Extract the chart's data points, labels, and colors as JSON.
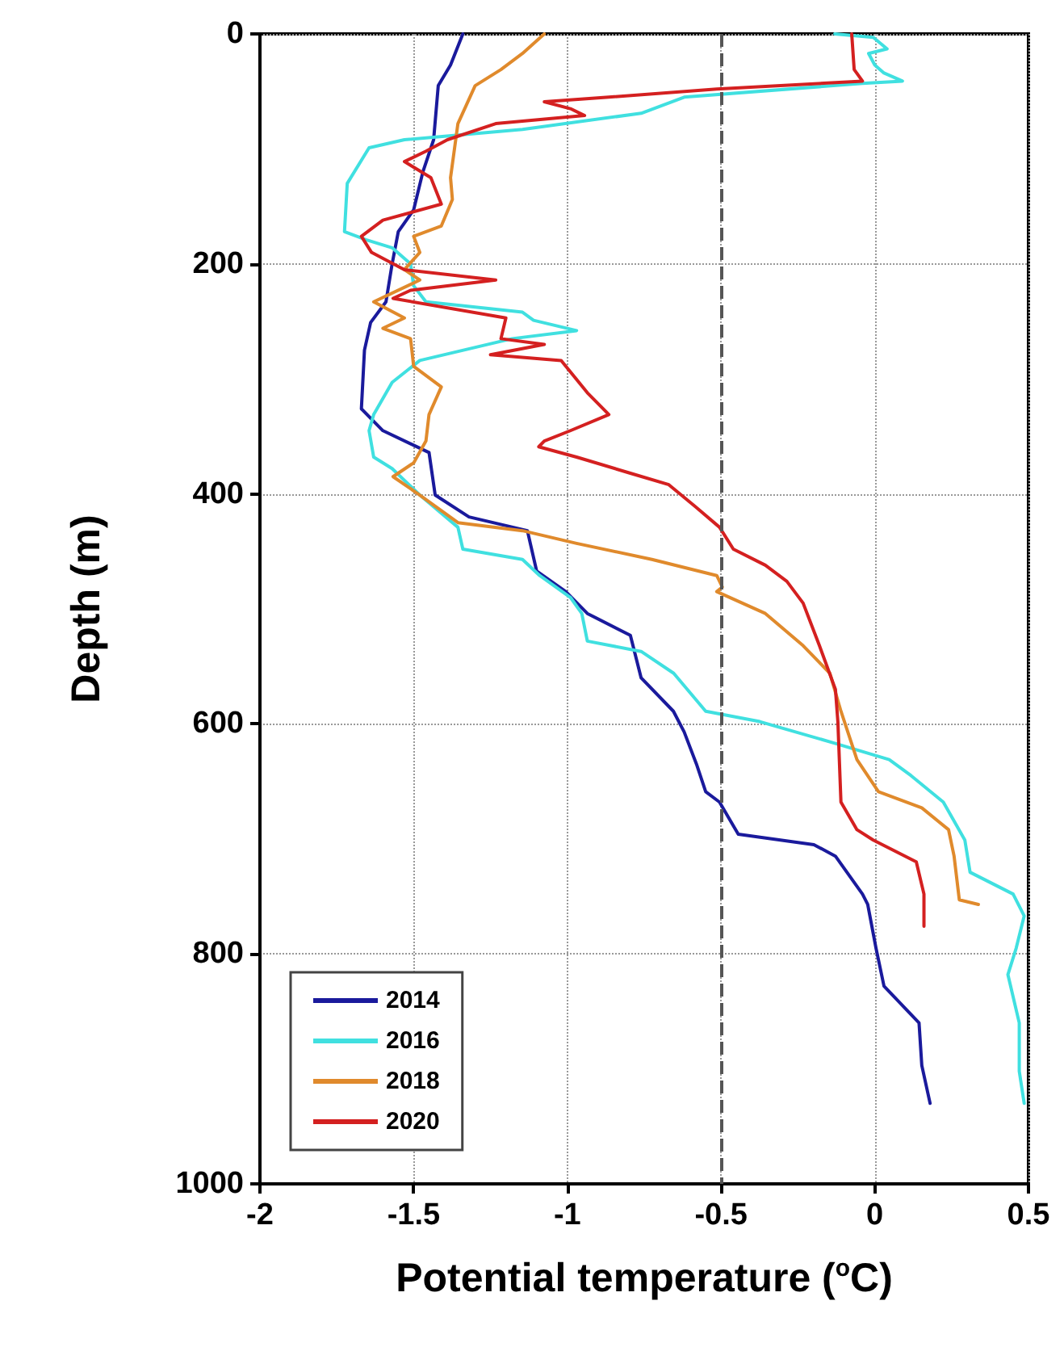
{
  "chart_data": {
    "type": "line",
    "xlabel": "Potential temperature ($^{o}$C)",
    "ylabel": "Depth (m)",
    "xlim": [
      -2,
      0.5
    ],
    "xticks": [
      -2,
      -1.5,
      -1,
      -0.5,
      0,
      0.5
    ],
    "ylim": [
      1000,
      0
    ],
    "yticks": [
      0,
      200,
      400,
      600,
      800,
      1000
    ],
    "grid": true,
    "legend": "bottom left",
    "marker": "none",
    "line_style": "solid",
    "ref_lines": [
      {
        "axis": "x",
        "value": -0.5,
        "label": null,
        "color": "#555555",
        "line_style": "dashed"
      }
    ],
    "series": [
      {
        "name": "2014",
        "color": "#1a1a9c",
        "x": [
          -1.34,
          -1.38,
          -1.42,
          -1.435,
          -1.47,
          -1.5,
          -1.55,
          -1.57,
          -1.59,
          -1.64,
          -1.66,
          -1.67,
          -1.6,
          -1.45,
          -1.43,
          -1.32,
          -1.13,
          -1.1,
          -1.005,
          -0.935,
          -0.795,
          -0.76,
          -0.655,
          -0.62,
          -0.58,
          -0.55,
          -0.505,
          -0.444,
          -0.198,
          -0.128,
          -0.04,
          -0.023,
          0.004,
          0.03,
          0.144,
          0.153,
          0.18
        ],
        "values": [
          0,
          27,
          45,
          92,
          120,
          153,
          172,
          200,
          233,
          251,
          275,
          326,
          345,
          364,
          401,
          420,
          432,
          467,
          485,
          504,
          523,
          560,
          589,
          607,
          635,
          659,
          668,
          696,
          705,
          715,
          748,
          757,
          795,
          828,
          860,
          897,
          930
        ]
      },
      {
        "name": "2016",
        "color": "#40e0e0",
        "x": [
          -0.13,
          -0.005,
          0.04,
          -0.02,
          0.0,
          0.03,
          0.09,
          -0.04,
          -0.62,
          -0.76,
          -1.146,
          -1.53,
          -1.645,
          -1.716,
          -1.725,
          -1.655,
          -1.57,
          -1.51,
          -1.5,
          -1.46,
          -1.146,
          -1.11,
          -0.97,
          -1.18,
          -1.48,
          -1.57,
          -1.63,
          -1.645,
          -1.63,
          -1.57,
          -1.48,
          -1.356,
          -1.34,
          -1.146,
          -1.09,
          -0.99,
          -0.953,
          -0.935,
          -0.76,
          -0.654,
          -0.55,
          -0.374,
          -0.128,
          0.047,
          0.118,
          0.223,
          0.293,
          0.31,
          0.45,
          0.486,
          0.46,
          0.433,
          0.47,
          0.47,
          0.486
        ],
        "values": [
          0,
          3,
          13,
          17,
          27,
          34,
          41,
          43,
          55,
          69,
          83,
          92,
          99,
          130,
          172,
          179,
          186,
          200,
          219,
          233,
          242,
          249,
          258,
          265,
          284,
          303,
          331,
          345,
          368,
          378,
          401,
          429,
          448,
          457,
          471,
          490,
          504,
          528,
          537,
          556,
          589,
          598,
          617,
          631,
          645,
          668,
          701,
          729,
          748,
          767,
          795,
          818,
          860,
          902,
          930
        ]
      },
      {
        "name": "2018",
        "color": "#e08a2c",
        "x": [
          -1.075,
          -1.146,
          -1.216,
          -1.3,
          -1.356,
          -1.38,
          -1.374,
          -1.41,
          -1.5,
          -1.48,
          -1.53,
          -1.48,
          -1.63,
          -1.53,
          -1.6,
          -1.51,
          -1.5,
          -1.41,
          -1.45,
          -1.46,
          -1.5,
          -1.567,
          -1.48,
          -1.356,
          -1.146,
          -0.97,
          -0.725,
          -0.514,
          -0.496,
          -0.514,
          -0.356,
          -0.233,
          -0.146,
          -0.11,
          -0.058,
          0.012,
          0.153,
          0.24,
          0.258,
          0.275,
          0.337
        ],
        "values": [
          0,
          17,
          31,
          45,
          78,
          125,
          144,
          167,
          176,
          190,
          205,
          214,
          233,
          247,
          256,
          265,
          289,
          307,
          331,
          354,
          373,
          385,
          401,
          425,
          432,
          443,
          457,
          471,
          481,
          485,
          504,
          532,
          556,
          589,
          631,
          659,
          673,
          692,
          715,
          753,
          757
        ]
      },
      {
        "name": "2020",
        "color": "#d42020",
        "x": [
          -0.075,
          -0.067,
          -0.04,
          -0.514,
          -0.865,
          -1.075,
          -0.99,
          -0.944,
          -1.233,
          -1.39,
          -1.46,
          -1.53,
          -1.444,
          -1.41,
          -1.6,
          -1.67,
          -1.637,
          -1.53,
          -1.233,
          -1.51,
          -1.567,
          -1.2,
          -1.216,
          -1.075,
          -1.25,
          -1.02,
          -0.935,
          -0.865,
          -0.99,
          -1.075,
          -1.093,
          -0.97,
          -0.795,
          -0.67,
          -0.584,
          -0.505,
          -0.46,
          -0.356,
          -0.286,
          -0.233,
          -0.18,
          -0.128,
          -0.12,
          -0.11,
          -0.058,
          -0.005,
          0.135,
          0.16,
          0.16
        ],
        "values": [
          0,
          31,
          41,
          48,
          55,
          59,
          65,
          71,
          78,
          92,
          102,
          111,
          125,
          148,
          162,
          176,
          190,
          205,
          214,
          223,
          230,
          247,
          265,
          270,
          279,
          284,
          312,
          331,
          345,
          354,
          359,
          368,
          382,
          392,
          411,
          429,
          448,
          462,
          476,
          495,
          532,
          570,
          598,
          668,
          692,
          701,
          720,
          748,
          776
        ]
      }
    ]
  }
}
